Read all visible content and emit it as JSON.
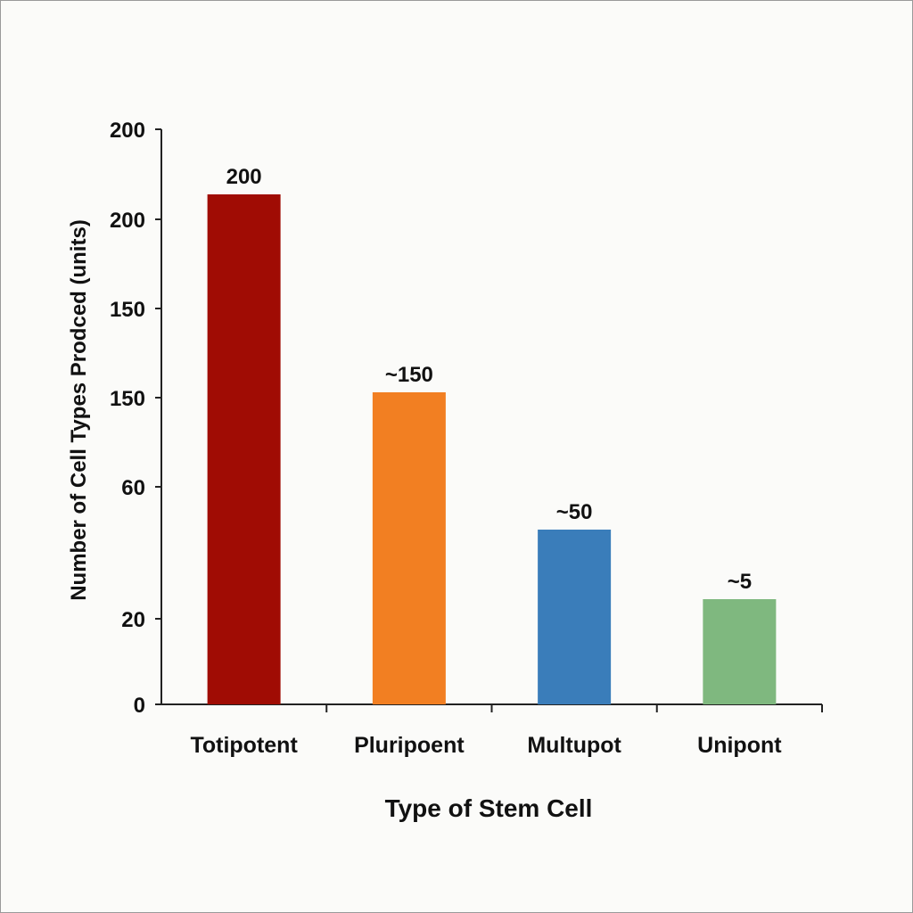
{
  "chart_data": {
    "type": "bar",
    "title": "",
    "xlabel": "Type of Stem Cell",
    "ylabel": "Number of Cell Types Prodced (units)",
    "categories": [
      "Totipotent",
      "Pluripoent",
      "Multupot",
      "Unipont"
    ],
    "values": [
      200,
      150,
      50,
      5
    ],
    "data_labels": [
      "200",
      "~150",
      "~50",
      "~5"
    ],
    "colors": [
      "#a00c04",
      "#f27f22",
      "#3a7dba",
      "#7fb87f"
    ],
    "y_tick_labels": [
      "0",
      "20",
      "60",
      "150",
      "150",
      "200",
      "200"
    ],
    "grid": false,
    "legend": "none"
  }
}
